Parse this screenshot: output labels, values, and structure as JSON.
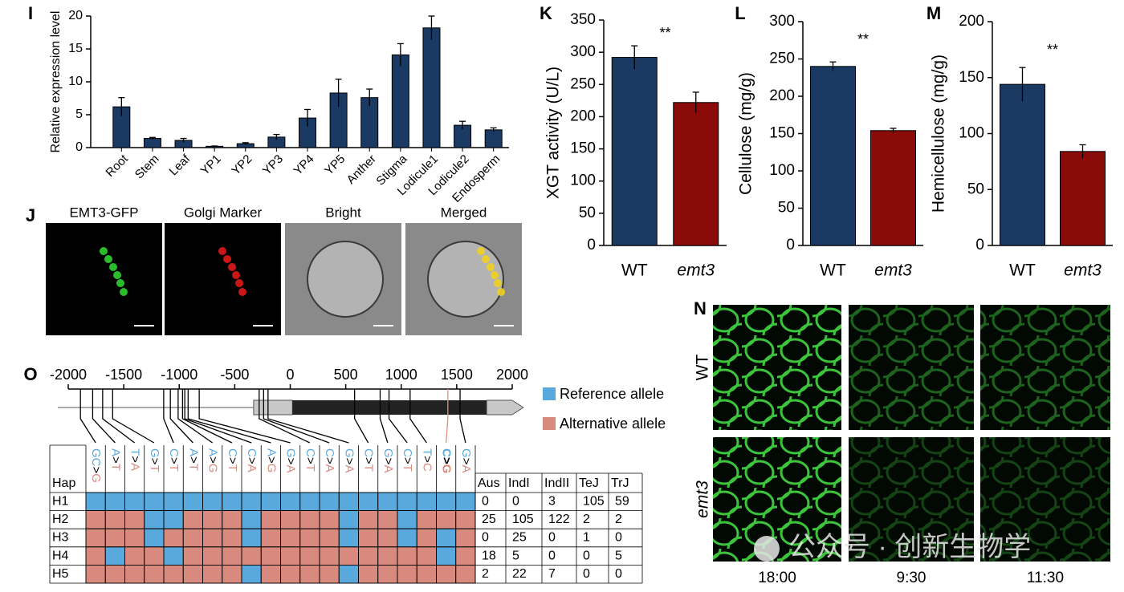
{
  "chart_data": [
    {
      "type": "bar",
      "panel_label": "I",
      "y_label": "Relative expression level",
      "categories": [
        "Root",
        "Stem",
        "Leaf",
        "YP1",
        "YP2",
        "YP3",
        "YP4",
        "YP5",
        "Anther",
        "Stigma",
        "Lodicule1",
        "Lodicule2",
        "Endosperm"
      ],
      "values": [
        6.2,
        1.4,
        1.1,
        0.2,
        0.6,
        1.6,
        4.5,
        8.3,
        7.6,
        14.1,
        18.2,
        3.4,
        2.7
      ],
      "errors": [
        1.4,
        0.15,
        0.3,
        0.05,
        0.15,
        0.4,
        1.3,
        2.1,
        1.3,
        1.7,
        1.8,
        0.6,
        0.3
      ],
      "color": "#1b3a63",
      "ylim": [
        0,
        20
      ],
      "yticks": [
        0,
        5,
        10,
        15,
        20
      ]
    },
    {
      "type": "bar",
      "panel_label": "K",
      "y_label": "XGT activity (U/L)",
      "annotation": "**",
      "categories": [
        "WT",
        "emt3"
      ],
      "values": [
        292,
        222
      ],
      "errors": [
        18,
        16
      ],
      "colors": [
        "#1b3a63",
        "#8b0b0b"
      ],
      "ylim": [
        0,
        350
      ],
      "yticks": [
        0,
        50,
        100,
        150,
        200,
        250,
        300,
        350
      ]
    },
    {
      "type": "bar",
      "panel_label": "L",
      "y_label": "Cellulose (mg/g)",
      "annotation": "**",
      "categories": [
        "WT",
        "emt3"
      ],
      "values": [
        240,
        154
      ],
      "errors": [
        6,
        3
      ],
      "colors": [
        "#1b3a63",
        "#8b0b0b"
      ],
      "ylim": [
        0,
        300
      ],
      "yticks": [
        0,
        50,
        100,
        150,
        200,
        250,
        300
      ]
    },
    {
      "type": "bar",
      "panel_label": "M",
      "y_label": "Hemicellulose (mg/g)",
      "annotation": "**",
      "categories": [
        "WT",
        "emt3"
      ],
      "values": [
        144,
        84
      ],
      "errors": [
        15,
        6
      ],
      "colors": [
        "#1b3a63",
        "#8b0b0b"
      ],
      "ylim": [
        0,
        200
      ],
      "yticks": [
        0,
        50,
        100,
        150,
        200
      ]
    }
  ],
  "panel_j": {
    "label": "J",
    "images": [
      "EMT3-GFP",
      "Golgi Marker",
      "Bright",
      "Merged"
    ]
  },
  "panel_n": {
    "label": "N",
    "rows": [
      "WT",
      "emt3"
    ],
    "columns": [
      "18:00",
      "9:30",
      "11:30"
    ]
  },
  "panel_o": {
    "label": "O",
    "xlim": [
      -2000,
      2000
    ],
    "xticks": [
      -2000,
      -1500,
      -1000,
      -500,
      0,
      500,
      1000,
      1500,
      2000
    ],
    "gene": {
      "start": -330,
      "cds_start": 20,
      "cds_end": 1770,
      "end": 2100
    },
    "legend": [
      {
        "name": "Reference allele",
        "color": "#5aa9dd"
      },
      {
        "name": "Alternative allele",
        "color": "#d98a7e"
      }
    ],
    "snps": [
      {
        "allele": "GC>G",
        "position": -1890
      },
      {
        "allele": "A>T",
        "position": -1780
      },
      {
        "allele": "T>A",
        "position": -1690
      },
      {
        "allele": "G>T",
        "position": -1600
      },
      {
        "allele": "C>T",
        "position": -1140
      },
      {
        "allele": "A>T",
        "position": -1080
      },
      {
        "allele": "A>G",
        "position": -1010
      },
      {
        "allele": "C>T",
        "position": -970
      },
      {
        "allele": "C>A",
        "position": -950
      },
      {
        "allele": "A>G",
        "position": -920
      },
      {
        "allele": "G>A",
        "position": -820
      },
      {
        "allele": "C>T",
        "position": -280
      },
      {
        "allele": "C>A",
        "position": -240
      },
      {
        "allele": "G>A",
        "position": -200
      },
      {
        "allele": "C>T",
        "position": 580
      },
      {
        "allele": "G>A",
        "position": 810
      },
      {
        "allele": "C>T",
        "position": 890
      },
      {
        "allele": "T>C",
        "position": 1080
      },
      {
        "allele": "C>G",
        "position": 1420,
        "line_color": "#e0907a"
      },
      {
        "allele": "G>A",
        "position": 1530
      }
    ],
    "hap_header": "Hap",
    "populations": [
      "Aus",
      "IndI",
      "IndII",
      "TeJ",
      "TrJ"
    ],
    "haplotypes": [
      {
        "name": "H1",
        "alleles": [
          0,
          0,
          0,
          0,
          0,
          0,
          0,
          0,
          0,
          0,
          0,
          0,
          0,
          0,
          0,
          0,
          0,
          0,
          0,
          0
        ],
        "counts": [
          0,
          0,
          3,
          105,
          59
        ]
      },
      {
        "name": "H2",
        "alleles": [
          1,
          1,
          1,
          0,
          0,
          1,
          1,
          1,
          0,
          1,
          1,
          1,
          1,
          0,
          1,
          1,
          0,
          1,
          1,
          1
        ],
        "counts": [
          25,
          105,
          122,
          2,
          2
        ]
      },
      {
        "name": "H3",
        "alleles": [
          1,
          1,
          1,
          0,
          1,
          1,
          1,
          1,
          0,
          1,
          1,
          1,
          1,
          0,
          1,
          1,
          0,
          1,
          0,
          1
        ],
        "counts": [
          0,
          25,
          0,
          1,
          0
        ]
      },
      {
        "name": "H4",
        "alleles": [
          1,
          0,
          1,
          1,
          0,
          1,
          1,
          1,
          1,
          1,
          1,
          1,
          1,
          1,
          1,
          1,
          1,
          1,
          0,
          1
        ],
        "counts": [
          18,
          5,
          0,
          0,
          5
        ]
      },
      {
        "name": "H5",
        "alleles": [
          1,
          1,
          1,
          1,
          1,
          1,
          1,
          1,
          0,
          1,
          1,
          1,
          1,
          0,
          1,
          1,
          1,
          1,
          1,
          1
        ],
        "counts": [
          2,
          22,
          7,
          0,
          0
        ]
      }
    ]
  },
  "watermark": "公众号 · 创新生物学"
}
